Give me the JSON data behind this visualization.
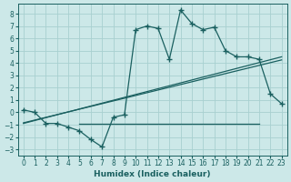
{
  "xlabel": "Humidex (Indice chaleur)",
  "bg_color": "#cce8e8",
  "grid_color": "#a8d0d0",
  "line_color": "#1a6060",
  "xlim": [
    -0.5,
    23.5
  ],
  "ylim": [
    -3.5,
    8.8
  ],
  "xticks": [
    0,
    1,
    2,
    3,
    4,
    5,
    6,
    7,
    8,
    9,
    10,
    11,
    12,
    13,
    14,
    15,
    16,
    17,
    18,
    19,
    20,
    21,
    22,
    23
  ],
  "yticks": [
    -3,
    -2,
    -1,
    0,
    1,
    2,
    3,
    4,
    5,
    6,
    7,
    8
  ],
  "line1_x": [
    0,
    1,
    2,
    3,
    4,
    5,
    6,
    7,
    8,
    9,
    10,
    11,
    12,
    13,
    14,
    15,
    16,
    17,
    18,
    19,
    20,
    21,
    22,
    23
  ],
  "line1_y": [
    0.2,
    0.0,
    -0.9,
    -0.9,
    -1.2,
    -1.5,
    -2.2,
    -2.8,
    -0.4,
    -0.2,
    6.7,
    7.0,
    6.8,
    4.3,
    8.3,
    7.2,
    6.7,
    6.9,
    5.0,
    4.5,
    4.5,
    4.3,
    1.5,
    0.7
  ],
  "line2_x": [
    0,
    23
  ],
  "line2_y": [
    -0.9,
    4.5
  ],
  "line3_x": [
    0,
    23
  ],
  "line3_y": [
    -0.85,
    4.25
  ],
  "line4_x": [
    5,
    21
  ],
  "line4_y": [
    -0.9,
    -0.9
  ],
  "figsize": [
    3.2,
    2.0
  ],
  "dpi": 100
}
